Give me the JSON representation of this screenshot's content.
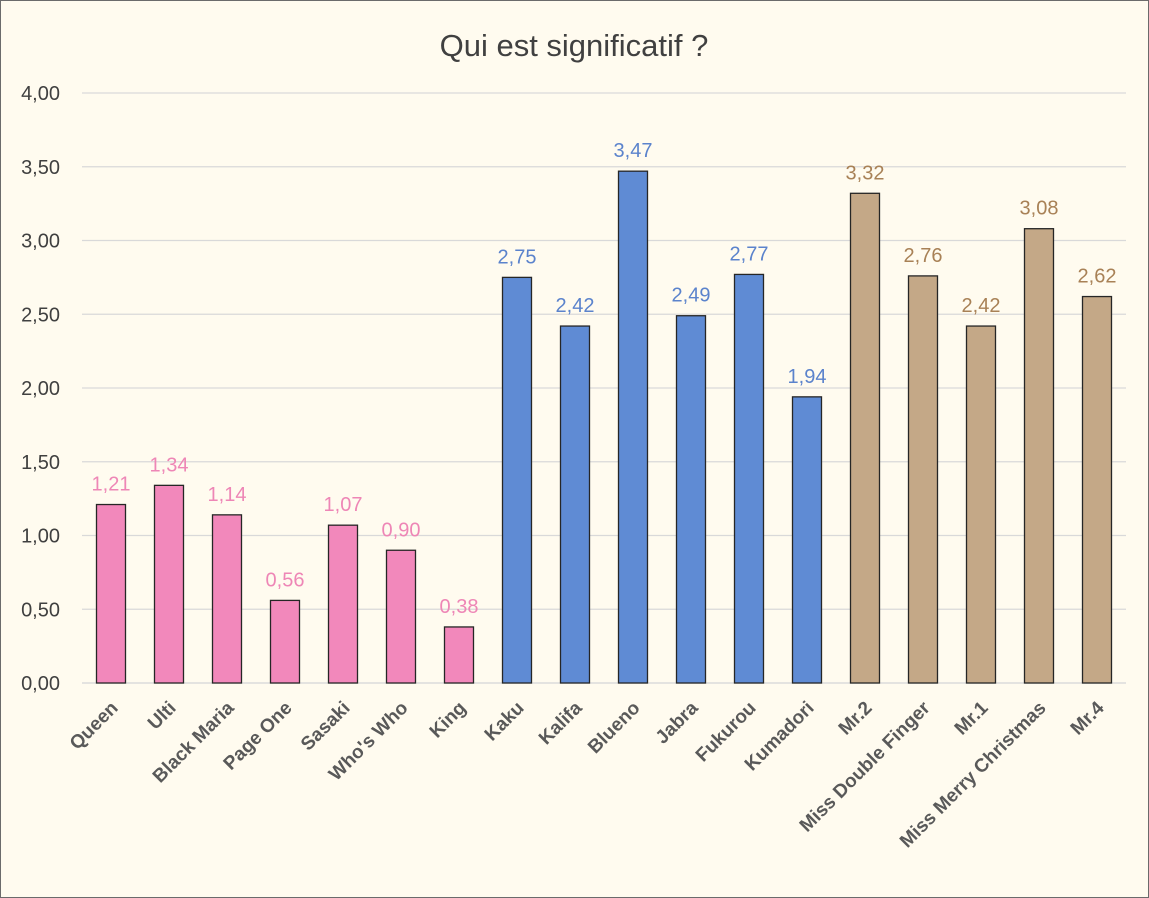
{
  "chart_data": {
    "type": "bar",
    "title": "Qui est significatif ?",
    "xlabel": "",
    "ylabel": "",
    "ylim": [
      0,
      4
    ],
    "ytick_labels": [
      "0,00",
      "0,50",
      "1,00",
      "1,50",
      "2,00",
      "2,50",
      "3,00",
      "3,50",
      "4,00"
    ],
    "ytick_values": [
      0,
      0.5,
      1,
      1.5,
      2,
      2.5,
      3,
      3.5,
      4
    ],
    "grid": true,
    "legend": "none",
    "categories": [
      "Queen",
      "Ulti",
      "Black Maria",
      "Page One",
      "Sasaki",
      "Who's Who",
      "King",
      "Kaku",
      "Kalifa",
      "Blueno",
      "Jabra",
      "Fukurou",
      "Kumadori",
      "Mr.2",
      "Miss Double Finger",
      "Mr.1",
      "Miss Merry Christmas",
      "Mr.4"
    ],
    "values": [
      1.21,
      1.34,
      1.14,
      0.56,
      1.07,
      0.9,
      0.38,
      2.75,
      2.42,
      3.47,
      2.49,
      2.77,
      1.94,
      3.32,
      2.76,
      2.42,
      3.08,
      2.62
    ],
    "value_labels": [
      "1,21",
      "1,34",
      "1,14",
      "0,56",
      "1,07",
      "0,90",
      "0,38",
      "2,75",
      "2,42",
      "3,47",
      "2,49",
      "2,77",
      "1,94",
      "3,32",
      "2,76",
      "2,42",
      "3,08",
      "2,62"
    ],
    "bar_colors": [
      "#f288bb",
      "#f288bb",
      "#f288bb",
      "#f288bb",
      "#f288bb",
      "#f288bb",
      "#f288bb",
      "#5f8bd4",
      "#5f8bd4",
      "#5f8bd4",
      "#5f8bd4",
      "#5f8bd4",
      "#5f8bd4",
      "#c4a887",
      "#c4a887",
      "#c4a887",
      "#c4a887",
      "#c4a887"
    ],
    "label_colors": [
      "#ee86b6",
      "#ee86b6",
      "#ee86b6",
      "#ee86b6",
      "#ee86b6",
      "#ee86b6",
      "#ee86b6",
      "#5b83cc",
      "#5b83cc",
      "#5b83cc",
      "#5b83cc",
      "#5b83cc",
      "#5b83cc",
      "#a88156",
      "#a88156",
      "#a88156",
      "#a88156",
      "#a88156"
    ]
  },
  "colors": {
    "background": "#fffbef",
    "gridline": "#d9d9d9",
    "text": "#404040"
  }
}
